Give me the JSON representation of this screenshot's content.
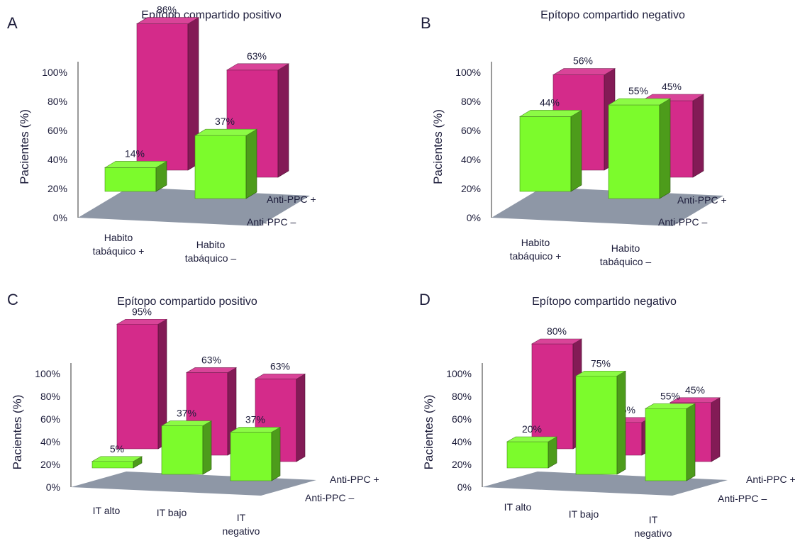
{
  "colors": {
    "anti_ppc_pos": "#d42b8a",
    "anti_ppc_neg": "#7cfb2c",
    "floor": "#8e97a6",
    "axis": "#333333",
    "text": "#1c1c3a"
  },
  "chart_data": [
    {
      "panel": "A",
      "title": "Epítopo compartido positivo",
      "type": "bar",
      "ylabel": "Pacientes (%)",
      "yticks": [
        "0%",
        "20%",
        "40%",
        "60%",
        "80%",
        "100%"
      ],
      "ylim": [
        0,
        100
      ],
      "categories": [
        [
          "Habito",
          "tabáquico +"
        ],
        [
          "Habito",
          "tabáquico –"
        ]
      ],
      "series": [
        {
          "name": "Anti-PPC –",
          "values": [
            14,
            37
          ],
          "labels": [
            "14%",
            "37%"
          ]
        },
        {
          "name": "Anti-PPC +",
          "values": [
            86,
            63
          ],
          "labels": [
            "86%",
            "63%"
          ]
        }
      ]
    },
    {
      "panel": "B",
      "title": "Epítopo compartido negativo",
      "type": "bar",
      "ylabel": "Pacientes (%)",
      "yticks": [
        "0%",
        "20%",
        "40%",
        "60%",
        "80%",
        "100%"
      ],
      "ylim": [
        0,
        100
      ],
      "categories": [
        [
          "Habito",
          "tabáquico +"
        ],
        [
          "Habito",
          "tabáquico –"
        ]
      ],
      "series": [
        {
          "name": "Anti-PPC –",
          "values": [
            44,
            55
          ],
          "labels": [
            "44%",
            "55%"
          ]
        },
        {
          "name": "Anti-PPC +",
          "values": [
            56,
            45
          ],
          "labels": [
            "56%",
            "45%"
          ]
        }
      ]
    },
    {
      "panel": "C",
      "title": "Epítopo compartido positivo",
      "type": "bar",
      "ylabel": "Pacientes (%)",
      "yticks": [
        "0%",
        "20%",
        "40%",
        "60%",
        "80%",
        "100%"
      ],
      "ylim": [
        0,
        100
      ],
      "categories": [
        [
          "IT alto"
        ],
        [
          "IT bajo"
        ],
        [
          "IT",
          "negativo"
        ]
      ],
      "series": [
        {
          "name": "Anti-PPC –",
          "values": [
            5,
            37,
            37
          ],
          "labels": [
            "5%",
            "37%",
            "37%"
          ]
        },
        {
          "name": "Anti-PPC +",
          "values": [
            95,
            63,
            63
          ],
          "labels": [
            "95%",
            "63%",
            "63%"
          ]
        }
      ]
    },
    {
      "panel": "D",
      "title": "Epítopo compartido negativo",
      "type": "bar",
      "ylabel": "Pacientes (%)",
      "yticks": [
        "0%",
        "20%",
        "40%",
        "60%",
        "80%",
        "100%"
      ],
      "ylim": [
        0,
        100
      ],
      "categories": [
        [
          "IT alto"
        ],
        [
          "IT bajo"
        ],
        [
          "IT",
          "negativo"
        ]
      ],
      "series": [
        {
          "name": "Anti-PPC –",
          "values": [
            20,
            75,
            55
          ],
          "labels": [
            "20%",
            "75%",
            "55%"
          ]
        },
        {
          "name": "Anti-PPC +",
          "values": [
            80,
            25,
            45
          ],
          "labels": [
            "80%",
            "25%",
            "45%"
          ]
        }
      ]
    }
  ]
}
